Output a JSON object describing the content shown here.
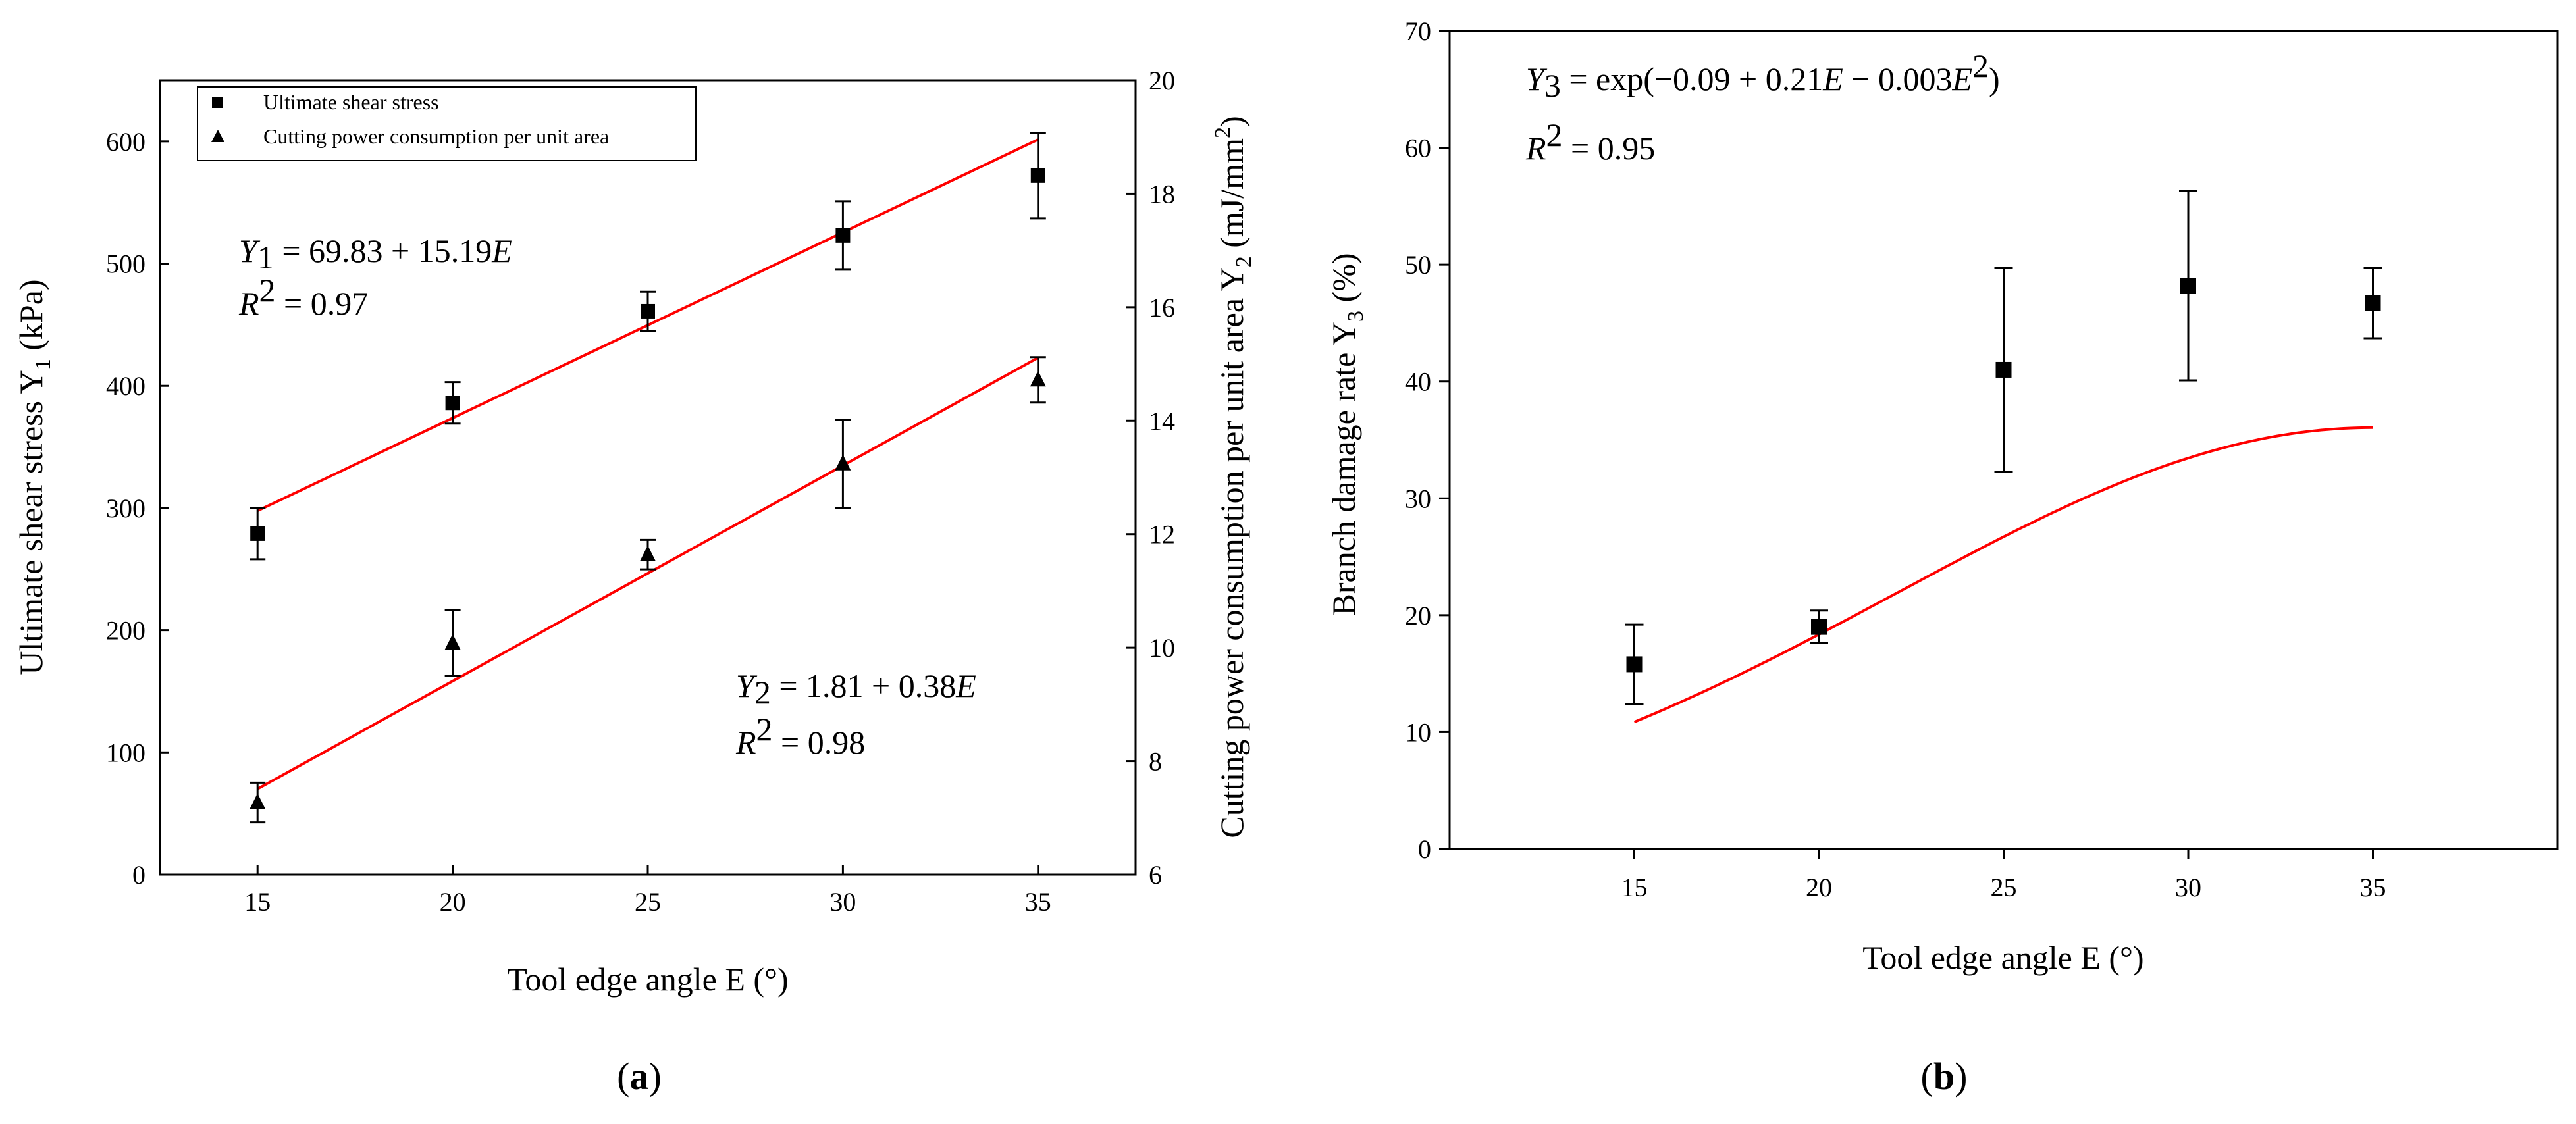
{
  "chart_data": [
    {
      "id": "a",
      "type": "scatter",
      "panel_label": "a",
      "xlabel": "Tool edge angle E (°)",
      "xlim": [
        12.5,
        37.5
      ],
      "xticks": [
        15,
        20,
        25,
        30,
        35
      ],
      "left_axis": {
        "label_main": "Ultimate shear stress Y",
        "label_sub": "1",
        "label_unit": " (kPa)",
        "ylim": [
          0,
          650
        ],
        "ticks": [
          0,
          100,
          200,
          300,
          400,
          500,
          600
        ]
      },
      "right_axis": {
        "label_main": "Cutting power consumption per unit area Y",
        "label_sub": "2",
        "label_unit": " (mJ/mm",
        "label_sup": "2",
        "label_close": ")",
        "ylim": [
          6,
          20
        ],
        "ticks": [
          6,
          8,
          10,
          12,
          14,
          16,
          18,
          20
        ]
      },
      "legend": {
        "position": "top-left",
        "items": [
          "Ultimate shear stress",
          "Cutting power consumption per unit area"
        ]
      },
      "series": [
        {
          "name": "Ultimate shear stress",
          "marker": "square",
          "axis": "left",
          "x": [
            15,
            20,
            25,
            30,
            35
          ],
          "y": [
            279,
            386,
            461,
            523,
            572
          ],
          "err": [
            21,
            17,
            16,
            28,
            35
          ],
          "fit": {
            "intercept": 69.83,
            "slope": 15.19
          }
        },
        {
          "name": "Cutting power consumption per unit area",
          "marker": "triangle",
          "axis": "right",
          "x": [
            15,
            20,
            25,
            30,
            35
          ],
          "y": [
            7.27,
            10.08,
            11.64,
            13.24,
            14.72
          ],
          "err": [
            0.35,
            0.58,
            0.26,
            0.78,
            0.4
          ],
          "fit": {
            "intercept": 1.81,
            "slope": 0.38
          }
        }
      ],
      "annotations": {
        "eq1": {
          "lhs": "Y",
          "sub": "1",
          "rhs": " = 69.83 + 15.19",
          "var": "E"
        },
        "r2_1": {
          "lhs": "R",
          "sup": "2",
          "rhs": " = 0.97"
        },
        "eq2": {
          "lhs": "Y",
          "sub": "2",
          "rhs": " = 1.81 + 0.38",
          "var": "E"
        },
        "r2_2": {
          "lhs": "R",
          "sup": "2",
          "rhs": " = 0.98"
        }
      }
    },
    {
      "id": "b",
      "type": "scatter",
      "panel_label": "b",
      "xlabel": "Tool edge angle E (°)",
      "xlim": [
        10,
        40
      ],
      "xticks": [
        15,
        20,
        25,
        30,
        35
      ],
      "left_axis": {
        "label_main": "Branch damage rate Y",
        "label_sub": "3",
        "label_unit": " (%)",
        "ylim": [
          0,
          70
        ],
        "ticks": [
          0,
          10,
          20,
          30,
          40,
          50,
          60,
          70
        ]
      },
      "series": [
        {
          "name": "Branch damage rate",
          "marker": "square",
          "x": [
            15,
            20,
            25,
            30,
            35
          ],
          "y": [
            15.8,
            19,
            41,
            48.2,
            46.7
          ],
          "err": [
            3.4,
            1.4,
            8.7,
            8.1,
            3
          ],
          "fit": {
            "type": "exp_quadratic",
            "a": -0.09,
            "b": 0.21,
            "c": -0.003
          }
        }
      ],
      "annotations": {
        "eq3": {
          "lhs": "Y",
          "sub": "3",
          "rhs": " = exp(−0.09 + 0.21",
          "var": "E",
          "rhs2": " − 0.003",
          "var2": "E",
          "sup": "2",
          "close": ")"
        },
        "r2_3": {
          "lhs": "R",
          "sup": "2",
          "rhs": " = 0.95"
        }
      }
    }
  ]
}
